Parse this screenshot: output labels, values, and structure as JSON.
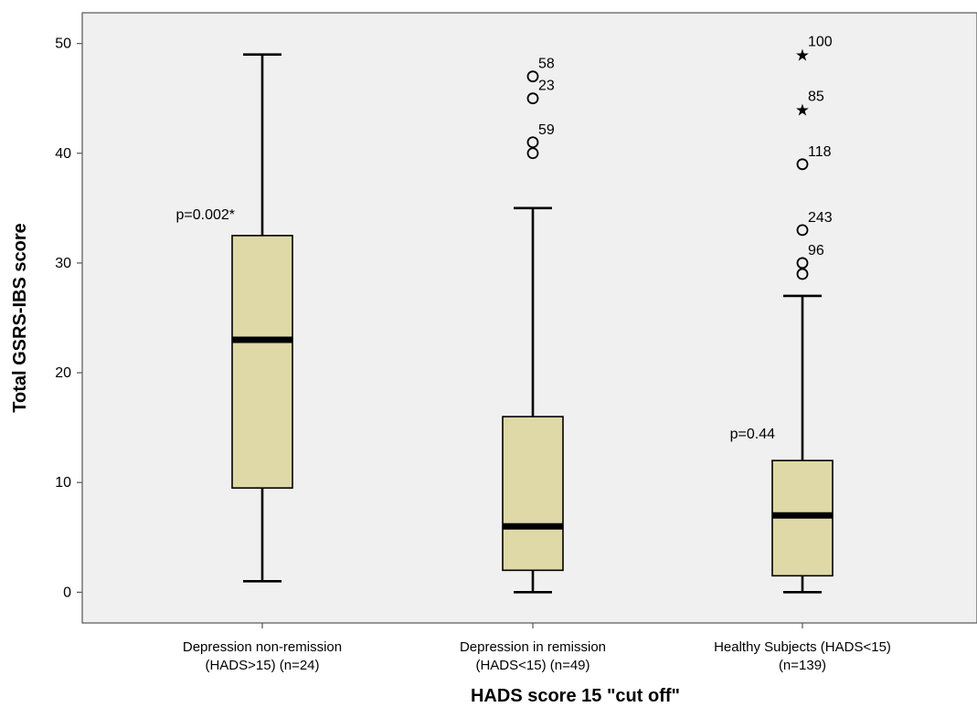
{
  "chart_data": {
    "type": "boxplot",
    "title": "",
    "xlabel": "HADS score 15 \"cut off\"",
    "ylabel": "Total GSRS-IBS score",
    "ylim": [
      -2.8,
      52.8
    ],
    "yticks": [
      0,
      10,
      20,
      30,
      40,
      50
    ],
    "grid": false,
    "colors": {
      "plot_background": "#f0f0f0",
      "box_fill": "#ded9a6",
      "stroke": "#000000",
      "axis": "#555555"
    },
    "groups": [
      {
        "label_lines": [
          "Depression non-remission",
          "(HADS>15) (n=24)"
        ],
        "whisker_low": 1,
        "q1": 9.5,
        "median": 23,
        "q3": 32.5,
        "whisker_high": 49,
        "outliers": [],
        "extremes": [],
        "annotation": "p=0.002*",
        "annotation_y": 34.5
      },
      {
        "label_lines": [
          "Depression in remission",
          "(HADS<15) (n=49)"
        ],
        "whisker_low": 0,
        "q1": 2,
        "median": 6,
        "q3": 16,
        "whisker_high": 35,
        "outliers": [
          {
            "value": 47,
            "label": "58"
          },
          {
            "value": 45,
            "label": "23"
          },
          {
            "value": 41,
            "label": "59"
          },
          {
            "value": 40,
            "label": ""
          }
        ],
        "extremes": [],
        "annotation": "",
        "annotation_y": null
      },
      {
        "label_lines": [
          "Healthy Subjects (HADS<15)",
          "(n=139)"
        ],
        "whisker_low": 0,
        "q1": 1.5,
        "median": 7,
        "q3": 12,
        "whisker_high": 27,
        "outliers": [
          {
            "value": 39,
            "label": "118"
          },
          {
            "value": 33,
            "label": "243"
          },
          {
            "value": 30,
            "label": "96"
          },
          {
            "value": 29,
            "label": ""
          }
        ],
        "extremes": [
          {
            "value": 49,
            "label": "100"
          },
          {
            "value": 44,
            "label": "85"
          }
        ],
        "annotation": "p=0.44",
        "annotation_y": 14.5
      }
    ]
  }
}
